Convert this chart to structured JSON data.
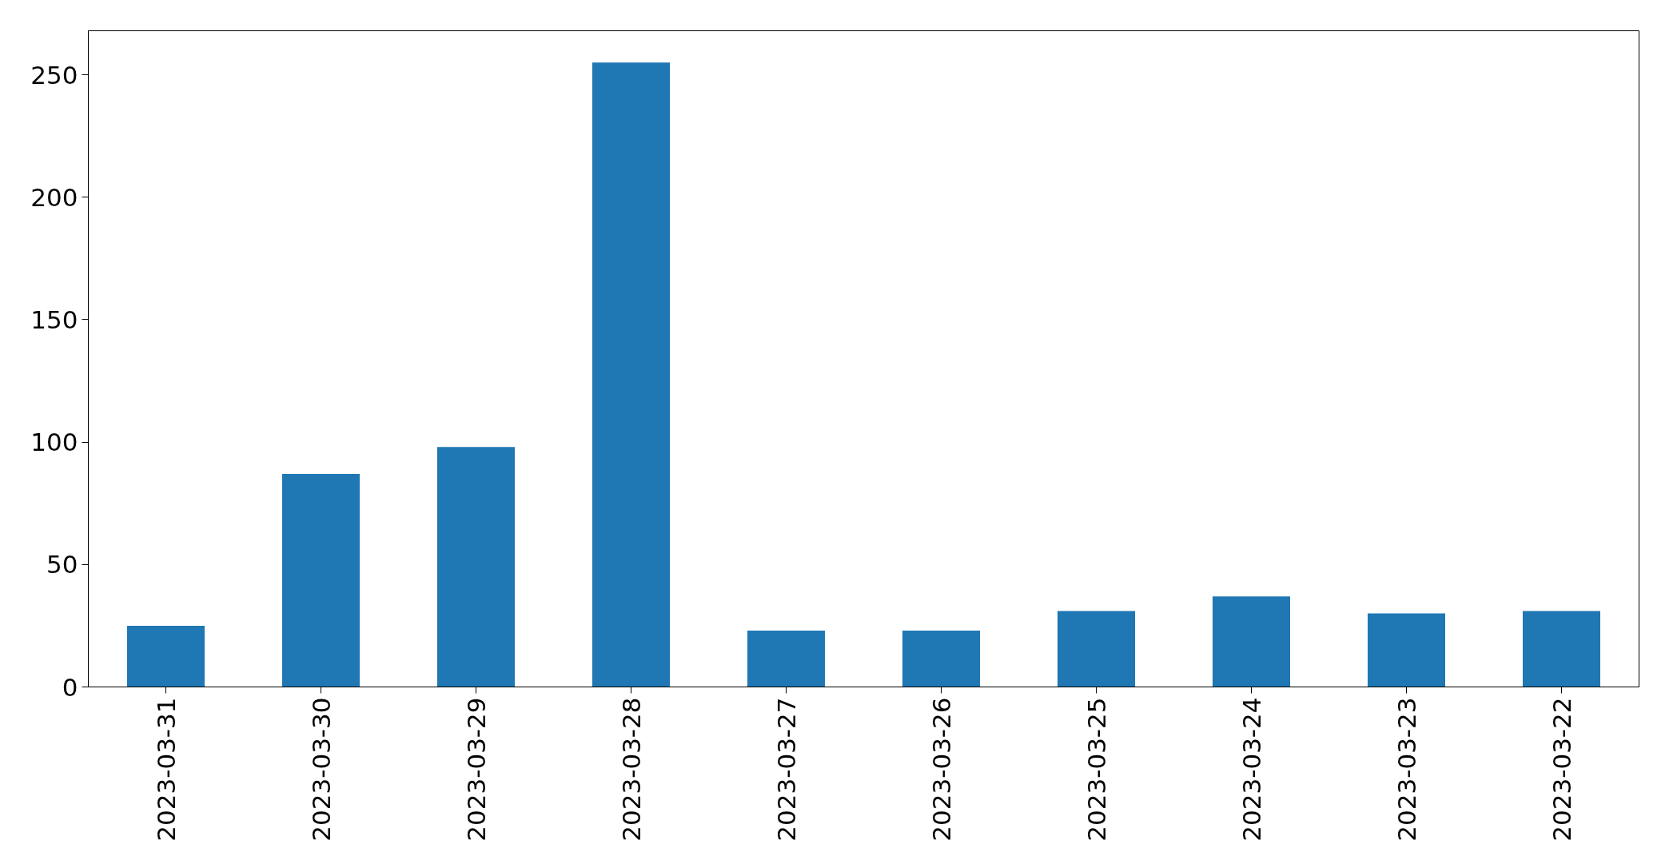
{
  "chart_data": {
    "type": "bar",
    "categories": [
      "2023-03-31",
      "2023-03-30",
      "2023-03-29",
      "2023-03-28",
      "2023-03-27",
      "2023-03-26",
      "2023-03-25",
      "2023-03-24",
      "2023-03-23",
      "2023-03-22"
    ],
    "values": [
      25,
      87,
      98,
      255,
      23,
      23,
      31,
      37,
      30,
      31
    ],
    "color": "#1f77b4",
    "ylim": [
      0,
      268
    ],
    "yticks": [
      0,
      50,
      100,
      150,
      200,
      250
    ]
  }
}
